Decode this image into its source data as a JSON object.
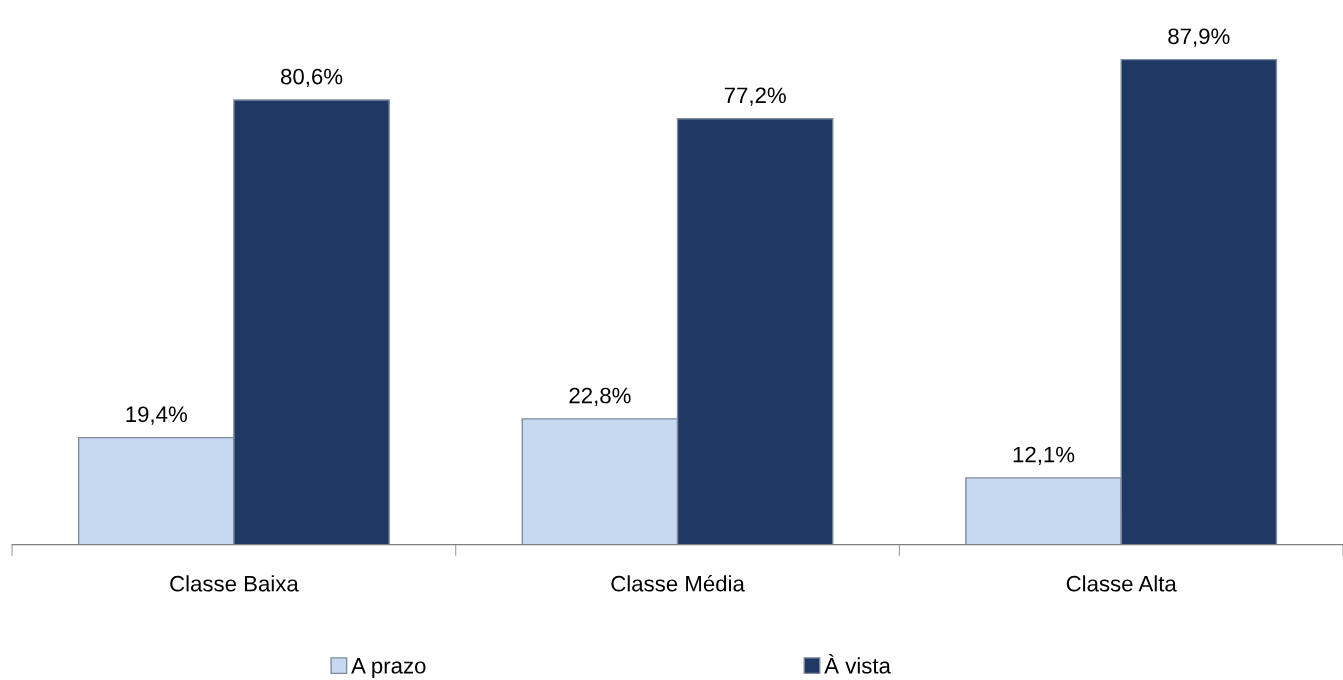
{
  "chart_data": {
    "type": "bar",
    "categories": [
      "Classe Baixa",
      "Classe Média",
      "Classe Alta"
    ],
    "series": [
      {
        "name": "A prazo",
        "color": "#c6d9f1",
        "values": [
          19.4,
          22.8,
          12.1
        ],
        "value_labels": [
          "19,4%",
          "22,8%",
          "12,1%"
        ]
      },
      {
        "name": "À vista",
        "color": "#1f3864",
        "values": [
          80.6,
          77.2,
          87.9
        ],
        "value_labels": [
          "80,6%",
          "77,2%",
          "87,9%"
        ]
      }
    ],
    "grid": false,
    "legend": "bottom"
  }
}
